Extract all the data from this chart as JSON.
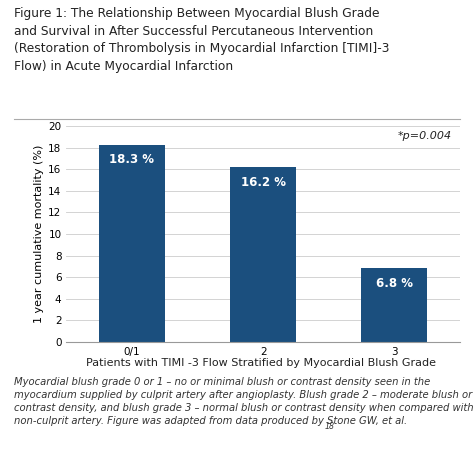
{
  "title_line1": "Figure 1: The Relationship Between Myocardial Blush Grade",
  "title_line2": "and Survival in After Successful Percutaneous Intervention",
  "title_line3": "(Restoration of Thrombolysis in Myocardial Infarction [TIMI]-3",
  "title_line4": "Flow) in Acute Myocardial Infarction",
  "categories": [
    "0/1",
    "2",
    "3"
  ],
  "values": [
    18.3,
    16.2,
    6.8
  ],
  "labels": [
    "18.3 %",
    "16.2 %",
    "6.8 %"
  ],
  "bar_color": "#1b4f7e",
  "ylabel": "1 year cumulative mortality (%)",
  "xlabel": "Patients with TIMI -3 Flow Stratified by Myocardial Blush Grade",
  "ylim": [
    0,
    20
  ],
  "yticks": [
    0,
    2,
    4,
    6,
    8,
    10,
    12,
    14,
    16,
    18,
    20
  ],
  "annotation": "*p=0.004",
  "footnote_line1": "Myocardial blush grade 0 or 1 – no or minimal blush or contrast density seen in the",
  "footnote_line2": "myocardium supplied by culprit artery after angioplasty. Blush grade 2 – moderate blush or",
  "footnote_line3": "contrast density, and blush grade 3 – normal blush or contrast density when compared with",
  "footnote_line4": "non-culprit artery. Figure was adapted from data produced by Stone GW, et al.",
  "footnote_superscript": "18",
  "background_color": "#ffffff",
  "title_color": "#222222",
  "title_fontsize": 8.8,
  "axis_fontsize": 8.0,
  "tick_fontsize": 7.5,
  "bar_label_fontsize": 8.5,
  "annotation_fontsize": 8.0,
  "footnote_fontsize": 7.2
}
